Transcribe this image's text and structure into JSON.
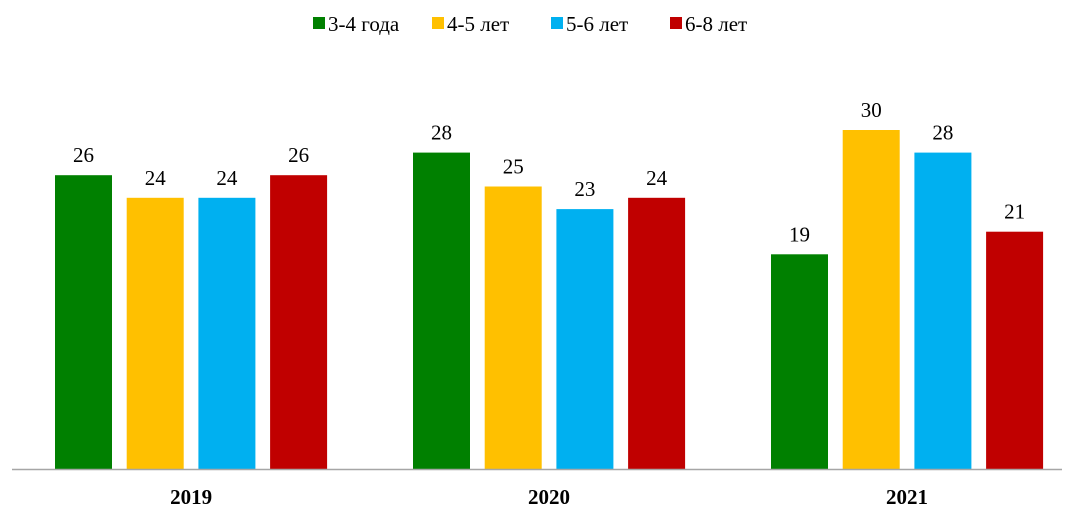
{
  "chart_data": {
    "type": "bar",
    "title": "",
    "xlabel": "",
    "ylabel": "",
    "categories": [
      "2019",
      "2020",
      "2021"
    ],
    "ylim": [
      0,
      32
    ],
    "grid": false,
    "legend_position": "top-center",
    "series": [
      {
        "name": "3-4 года",
        "color": "#008000",
        "values": [
          26,
          28,
          19
        ]
      },
      {
        "name": "4-5 лет",
        "color": "#FFC000",
        "values": [
          24,
          25,
          30
        ]
      },
      {
        "name": "5-6 лет",
        "color": "#00B0F0",
        "values": [
          24,
          23,
          28
        ]
      },
      {
        "name": "6-8 лет",
        "color": "#C00000",
        "values": [
          26,
          24,
          21
        ]
      }
    ],
    "axis_color": "#A6A6A6"
  }
}
